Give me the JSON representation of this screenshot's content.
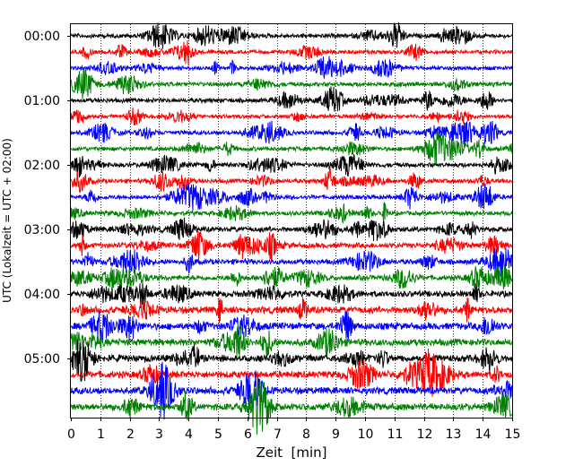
{
  "chart_data": {
    "type": "line",
    "title": "",
    "xlabel": "Zeit  [min]",
    "ylabel": "UTC (Lokalzeit = UTC + 02:00)",
    "xlim": [
      0,
      15
    ],
    "x_ticks": [
      "0",
      "1",
      "2",
      "3",
      "4",
      "5",
      "6",
      "7",
      "8",
      "9",
      "10",
      "11",
      "12",
      "13",
      "14",
      "15"
    ],
    "y_tick_labels": [
      "00:00",
      "01:00",
      "02:00",
      "03:00",
      "04:00",
      "05:00"
    ],
    "grid": "vertical dotted at each minute",
    "trace_colors": [
      "#000000",
      "#ff0000",
      "#0000ff",
      "#008000"
    ],
    "traces": [
      {
        "start": "00:00",
        "amplitude": 0.25
      },
      {
        "start": "00:15",
        "amplitude": 0.22
      },
      {
        "start": "00:30",
        "amplitude": 0.22
      },
      {
        "start": "00:45",
        "amplitude": 0.25
      },
      {
        "start": "01:00",
        "amplitude": 0.25
      },
      {
        "start": "01:15",
        "amplitude": 0.22
      },
      {
        "start": "01:30",
        "amplitude": 0.25
      },
      {
        "start": "01:45",
        "amplitude": 0.25
      },
      {
        "start": "02:00",
        "amplitude": 0.25
      },
      {
        "start": "02:15",
        "amplitude": 0.25
      },
      {
        "start": "02:30",
        "amplitude": 0.25
      },
      {
        "start": "02:45",
        "amplitude": 0.25
      },
      {
        "start": "03:00",
        "amplitude": 0.3
      },
      {
        "start": "03:15",
        "amplitude": 0.3
      },
      {
        "start": "03:30",
        "amplitude": 0.3
      },
      {
        "start": "03:45",
        "amplitude": 0.3
      },
      {
        "start": "04:00",
        "amplitude": 0.35
      },
      {
        "start": "04:15",
        "amplitude": 0.4
      },
      {
        "start": "04:30",
        "amplitude": 0.4
      },
      {
        "start": "04:45",
        "amplitude": 0.4
      },
      {
        "start": "05:00",
        "amplitude": 0.4
      },
      {
        "start": "05:15",
        "amplitude": 0.4
      },
      {
        "start": "05:30",
        "amplitude": 0.4
      },
      {
        "start": "05:45",
        "amplitude": 0.4
      }
    ]
  }
}
